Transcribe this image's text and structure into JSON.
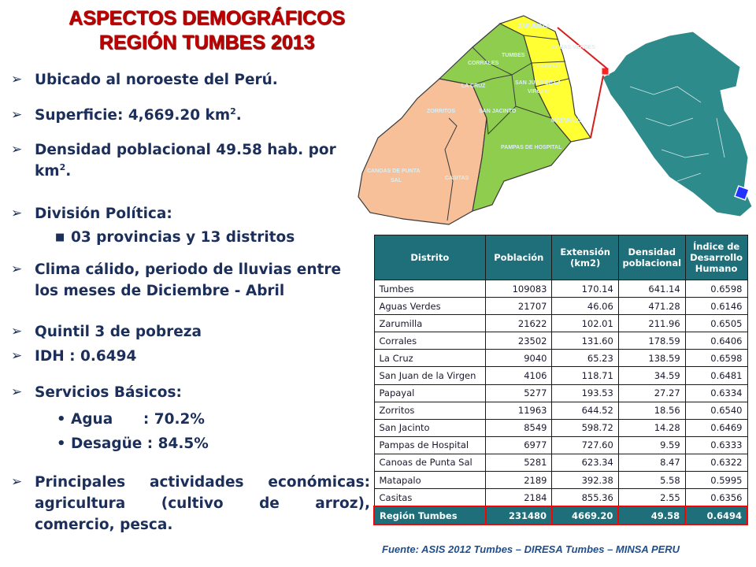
{
  "title": {
    "line1": "ASPECTOS DEMOGRÁFICOS",
    "line2": "REGIÓN TUMBES 2013"
  },
  "bullets": {
    "ubicado": "Ubicado al noroeste del Perú.",
    "superficie": "Superficie: 4,669.20 km",
    "superficie_sup": "2",
    "superficie_end": ".",
    "densidad": "Densidad poblacional 49.58 hab. por",
    "densidad_2": "km",
    "densidad_sup": "2",
    "densidad_end": ".",
    "division": "División Política:",
    "division_sub": "03 provincias y 13 distritos",
    "clima_1": "Clima cálido, periodo de lluvias entre",
    "clima_2": "los meses de Diciembre  - Abril",
    "quintil": "Quintil 3 de pobreza",
    "idh": "IDH : 0.6494",
    "servicios": "Servicios  Básicos:",
    "agua": "Agua      : 70.2%",
    "desague": "Desagüe : 84.5%",
    "actividades_words": [
      "Principales",
      "actividades",
      "económicas:"
    ],
    "actividades_words2": [
      "agricultura",
      "(cultivo",
      "de",
      "arroz),"
    ],
    "actividades_3": "comercio, pesca."
  },
  "map": {
    "districts": {
      "zarumilla": "ZARUMILLA",
      "aguas_verdes": "AGUAS VERDES",
      "tumbes": "TUMBES",
      "corrales": "CORRALES",
      "papayal": "PAPAYAL",
      "la_cruz": "LA CRUZ",
      "san_juan_1": "SAN JUAN DE LA",
      "san_juan_2": "VIRGEN",
      "zorritos": "ZORRITOS",
      "san_jacinto": "SAN JACINTO",
      "matapalo": "MATAPALO",
      "pampas": "PAMPAS DE HOSPITAL",
      "canoas_1": "CANOAS DE PUNTA",
      "canoas_2": "SAL",
      "casitas": "CASITAS"
    },
    "colors": {
      "yellow_province": "#ffff33",
      "green_province": "#8fcd4f",
      "orange_province": "#f8c098",
      "peru": "#2e8b8b",
      "highlight": "#2233ff",
      "connector": "#d42020"
    }
  },
  "table": {
    "headers": [
      "Distrito",
      "Población",
      "Extensión (km2)",
      "Densidad poblacional",
      "Índice de Desarrollo Humano"
    ],
    "rows": [
      [
        "Tumbes",
        "109083",
        "170.14",
        "641.14",
        "0.6598"
      ],
      [
        "Aguas Verdes",
        "21707",
        "46.06",
        "471.28",
        "0.6146"
      ],
      [
        "Zarumilla",
        "21622",
        "102.01",
        "211.96",
        "0.6505"
      ],
      [
        "Corrales",
        "23502",
        "131.60",
        "178.59",
        "0.6406"
      ],
      [
        "La Cruz",
        "9040",
        "65.23",
        "138.59",
        "0.6598"
      ],
      [
        "San Juan de la Virgen",
        "4106",
        "118.71",
        "34.59",
        "0.6481"
      ],
      [
        "Papayal",
        "5277",
        "193.53",
        "27.27",
        "0.6334"
      ],
      [
        "Zorritos",
        "11963",
        "644.52",
        "18.56",
        "0.6540"
      ],
      [
        "San Jacinto",
        "8549",
        "598.72",
        "14.28",
        "0.6469"
      ],
      [
        "Pampas de Hospital",
        "6977",
        "727.60",
        "9.59",
        "0.6333"
      ],
      [
        "Canoas de Punta Sal",
        "5281",
        "623.34",
        "8.47",
        "0.6322"
      ],
      [
        "Matapalo",
        "2189",
        "392.38",
        "5.58",
        "0.5995"
      ],
      [
        "Casitas",
        "2184",
        "855.36",
        "2.55",
        "0.6356"
      ]
    ],
    "total": [
      "Región Tumbes",
      "231480",
      "4669.20",
      "49.58",
      "0.6494"
    ]
  },
  "source": "Fuente: ASIS 2012 Tumbes – DIRESA Tumbes – MINSA PERU"
}
